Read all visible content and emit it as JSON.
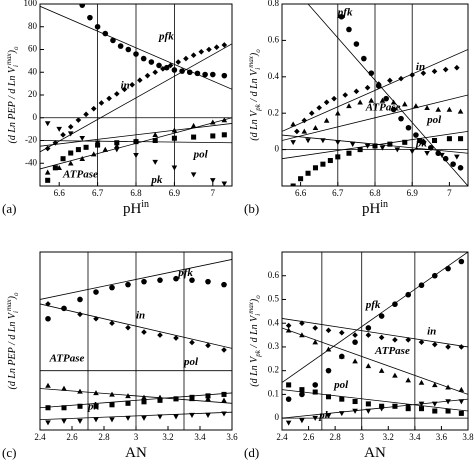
{
  "chart_data": [
    {
      "type": "scatter",
      "panel": "(a)",
      "xlabel": {
        "main": "pH",
        "sup": "in"
      },
      "ylabel": {
        "main": "(d Ln PEP / d Ln V",
        "sub": "i",
        "sup": "max",
        "end": ")",
        "end_sub": "o"
      },
      "xlim": [
        6.55,
        7.05
      ],
      "xticks": [
        6.6,
        6.7,
        6.8,
        6.9,
        7
      ],
      "ylim": [
        -60,
        100
      ],
      "yticks": [
        -40,
        -20,
        0,
        20,
        40,
        60,
        80,
        100
      ],
      "vlines": [
        6.7,
        6.8,
        6.9
      ],
      "hlines": [
        0
      ],
      "series": [
        {
          "name": "pfk",
          "marker": "circle",
          "x": [
            6.66,
            6.68,
            6.7,
            6.72,
            6.74,
            6.76,
            6.78,
            6.8,
            6.82,
            6.84,
            6.86,
            6.88,
            6.9,
            6.92,
            6.94,
            6.96,
            6.98,
            7.0,
            7.03
          ],
          "values": [
            99,
            88,
            80,
            74,
            68,
            63,
            60,
            56,
            52,
            49,
            46,
            44,
            42,
            41,
            40,
            39,
            38,
            38,
            37
          ]
        },
        {
          "name": "in",
          "marker": "diamond",
          "x": [
            6.57,
            6.59,
            6.61,
            6.63,
            6.65,
            6.67,
            6.69,
            6.71,
            6.73,
            6.75,
            6.77,
            6.79,
            6.81,
            6.83,
            6.85,
            6.87,
            6.89,
            6.91,
            6.93,
            6.95,
            6.97,
            6.99,
            7.01,
            7.03
          ],
          "values": [
            -27,
            -22,
            -15,
            -8,
            -2,
            3,
            8,
            13,
            17,
            21,
            25,
            29,
            33,
            37,
            40,
            43,
            46,
            49,
            52,
            55,
            58,
            60,
            62,
            64
          ]
        },
        {
          "name": "pol",
          "marker": "square",
          "x": [
            6.57,
            6.59,
            6.61,
            6.63,
            6.65,
            6.67,
            6.7,
            6.75,
            6.8,
            6.85,
            6.9,
            6.95,
            7.0,
            7.03
          ],
          "values": [
            -55,
            -44,
            -36,
            -31,
            -28,
            -26,
            -24,
            -22,
            -21,
            -20,
            -18,
            -17,
            -16,
            -15
          ]
        },
        {
          "name": "ATPase",
          "marker": "triangle-up",
          "x": [
            6.57,
            6.6,
            6.63,
            6.66,
            6.69,
            6.72,
            6.75,
            6.8,
            6.85,
            6.9,
            6.95,
            7.0,
            7.03
          ],
          "values": [
            -48,
            -44,
            -40,
            -36,
            -32,
            -28,
            -25,
            -20,
            -15,
            -11,
            -7,
            -4,
            -2
          ]
        },
        {
          "name": "pk",
          "marker": "triangle-down",
          "x": [
            6.57,
            6.6,
            6.63,
            6.66,
            6.7,
            6.75,
            6.8,
            6.85,
            6.9,
            6.95,
            7.0,
            7.03
          ],
          "values": [
            -5,
            -10,
            -14,
            -18,
            -22,
            -28,
            -33,
            -39,
            -44,
            -50,
            -55,
            -58
          ]
        }
      ],
      "fits": [
        {
          "x": [
            6.55,
            7.05
          ],
          "y": [
            98,
            25
          ]
        },
        {
          "x": [
            6.55,
            7.05
          ],
          "y": [
            -30,
            65
          ]
        },
        {
          "x": [
            6.55,
            7.05
          ],
          "y": [
            -25,
            -5
          ]
        },
        {
          "x": [
            6.55,
            7.05
          ],
          "y": [
            -20,
            -22
          ]
        },
        {
          "x": [
            6.55,
            7.05
          ],
          "y": [
            -45,
            0
          ]
        }
      ]
    },
    {
      "type": "scatter",
      "panel": "(b)",
      "xlabel": {
        "main": "pH",
        "sup": "in"
      },
      "ylabel": {
        "main": "(d Ln V",
        "sub": "pk",
        "sup": "",
        "end": " / d Ln V",
        "end_sub": "i",
        "sup2": "max",
        "end2": ")",
        "end_sub2": "o"
      },
      "xlim": [
        6.55,
        7.05
      ],
      "xticks": [
        6.6,
        6.7,
        6.8,
        6.9,
        7
      ],
      "ylim": [
        -0.2,
        0.8
      ],
      "yticks": [
        0,
        0.2,
        0.4,
        0.6,
        0.8
      ],
      "vlines": [
        6.7,
        6.8,
        6.9
      ],
      "hlines": [
        0
      ],
      "series": [
        {
          "name": "pfk",
          "marker": "circle",
          "x": [
            6.71,
            6.73,
            6.75,
            6.77,
            6.79,
            6.81,
            6.83,
            6.85,
            6.87,
            6.89,
            6.91,
            6.93,
            6.95,
            6.97,
            6.99,
            7.01,
            7.03
          ],
          "values": [
            0.73,
            0.66,
            0.58,
            0.5,
            0.42,
            0.35,
            0.28,
            0.22,
            0.17,
            0.12,
            0.08,
            0.04,
            0.01,
            -0.02,
            -0.05,
            -0.08,
            -0.1
          ]
        },
        {
          "name": "in",
          "marker": "diamond",
          "x": [
            6.59,
            6.61,
            6.63,
            6.65,
            6.67,
            6.69,
            6.72,
            6.75,
            6.78,
            6.81,
            6.84,
            6.87,
            6.9,
            6.93,
            6.96,
            6.99,
            7.02
          ],
          "values": [
            0.1,
            0.16,
            0.2,
            0.23,
            0.26,
            0.28,
            0.3,
            0.32,
            0.34,
            0.36,
            0.38,
            0.39,
            0.41,
            0.42,
            0.43,
            0.44,
            0.45
          ]
        },
        {
          "name": "ATPase",
          "marker": "triangle-up",
          "x": [
            6.58,
            6.61,
            6.64,
            6.67,
            6.7,
            6.73,
            6.76,
            6.79,
            6.82,
            6.85,
            6.88,
            6.91,
            6.94,
            6.97,
            7.0,
            7.03
          ],
          "values": [
            0.14,
            0.1,
            0.12,
            0.16,
            0.2,
            0.24,
            0.26,
            0.27,
            0.27,
            0.26,
            0.25,
            0.24,
            0.23,
            0.22,
            0.22,
            0.21
          ]
        },
        {
          "name": "pol",
          "marker": "square",
          "x": [
            6.58,
            6.6,
            6.62,
            6.64,
            6.66,
            6.68,
            6.7,
            6.73,
            6.76,
            6.8,
            6.84,
            6.88,
            6.92,
            6.96,
            7.0,
            7.03
          ],
          "values": [
            -0.2,
            -0.16,
            -0.13,
            -0.1,
            -0.08,
            -0.06,
            -0.04,
            -0.02,
            0,
            0.02,
            0.03,
            0.04,
            0.05,
            0.05,
            0.06,
            0.06
          ]
        },
        {
          "name": "pk",
          "marker": "triangle-down",
          "x": [
            6.58,
            6.62,
            6.66,
            6.7,
            6.74,
            6.78,
            6.82,
            6.86,
            6.9,
            6.94,
            6.98,
            7.02
          ],
          "values": [
            0.04,
            0.05,
            0.05,
            0.04,
            0.03,
            0.02,
            0.01,
            0,
            -0.01,
            -0.02,
            -0.03,
            -0.04
          ]
        }
      ],
      "fits": [
        {
          "x": [
            6.62,
            7.05
          ],
          "y": [
            0.8,
            -0.2
          ]
        },
        {
          "x": [
            6.55,
            7.05
          ],
          "y": [
            0.1,
            0.55
          ]
        },
        {
          "x": [
            6.55,
            7.05
          ],
          "y": [
            0.05,
            0.3
          ]
        },
        {
          "x": [
            6.55,
            7.05
          ],
          "y": [
            -0.05,
            0.1
          ]
        },
        {
          "x": [
            6.55,
            7.05
          ],
          "y": [
            0.08,
            -0.02
          ]
        }
      ]
    },
    {
      "type": "scatter",
      "panel": "(c)",
      "xlabel": {
        "main": "AN"
      },
      "ylabel": {
        "main": "(d Ln PEP / d Ln V",
        "sub": "i",
        "sup": "max",
        "end": ")",
        "end_sub": "o"
      },
      "xlim": [
        2.4,
        3.6
      ],
      "xticks": [
        2.4,
        2.6,
        2.8,
        3,
        3.2,
        3.4,
        3.6
      ],
      "ylim": [
        -40,
        80
      ],
      "vlines": [
        2.7,
        3.0,
        3.3
      ],
      "hlines": [
        0
      ],
      "series": [
        {
          "name": "pfk",
          "marker": "circle",
          "x": [
            2.45,
            2.55,
            2.65,
            2.75,
            2.85,
            2.95,
            3.05,
            3.15,
            3.25,
            3.35,
            3.45,
            3.55
          ],
          "values": [
            35,
            42,
            48,
            53,
            56,
            58,
            60,
            61,
            62,
            61,
            60,
            58
          ]
        },
        {
          "name": "in",
          "marker": "diamond",
          "x": [
            2.45,
            2.55,
            2.65,
            2.75,
            2.85,
            2.95,
            3.05,
            3.15,
            3.25,
            3.35,
            3.45,
            3.55
          ],
          "values": [
            45,
            42,
            38,
            35,
            32,
            29,
            26,
            24,
            22,
            19,
            17,
            14
          ]
        },
        {
          "name": "ATPase",
          "marker": "triangle-up",
          "x": [
            2.45,
            2.55,
            2.65,
            2.75,
            2.85,
            2.95,
            3.05,
            3.15,
            3.25,
            3.35,
            3.45,
            3.55
          ],
          "values": [
            -10,
            -12,
            -14,
            -15,
            -16,
            -17,
            -18,
            -18,
            -19,
            -19,
            -19,
            -20
          ]
        },
        {
          "name": "pol",
          "marker": "square",
          "x": [
            2.45,
            2.55,
            2.65,
            2.75,
            2.85,
            2.95,
            3.05,
            3.15,
            3.25,
            3.35,
            3.45,
            3.55
          ],
          "values": [
            -25,
            -25,
            -24,
            -24,
            -23,
            -22,
            -21,
            -20,
            -19,
            -18,
            -17,
            -16
          ]
        },
        {
          "name": "pk",
          "marker": "triangle-down",
          "x": [
            2.45,
            2.55,
            2.65,
            2.75,
            2.85,
            2.95,
            3.05,
            3.15,
            3.25,
            3.35,
            3.45,
            3.55
          ],
          "values": [
            -35,
            -34,
            -34,
            -33,
            -33,
            -32,
            -32,
            -31,
            -31,
            -30,
            -30,
            -29
          ]
        }
      ],
      "fits": [
        {
          "x": [
            2.4,
            3.6
          ],
          "y": [
            48,
            75
          ]
        },
        {
          "x": [
            2.4,
            3.6
          ],
          "y": [
            45,
            15
          ]
        },
        {
          "x": [
            2.4,
            3.6
          ],
          "y": [
            -12,
            -22
          ]
        },
        {
          "x": [
            2.4,
            3.6
          ],
          "y": [
            -25,
            -15
          ]
        },
        {
          "x": [
            2.4,
            3.6
          ],
          "y": [
            -33,
            -28
          ]
        }
      ]
    },
    {
      "type": "scatter",
      "panel": "(d)",
      "xlabel": {
        "main": "AN"
      },
      "ylabel": {
        "main": "(d Ln V",
        "sub": "pk",
        "sup": "",
        "end": " / d Ln V",
        "end_sub": "i",
        "sup2": "max",
        "end2": ")",
        "end_sub2": "o"
      },
      "xlim": [
        2.4,
        3.8
      ],
      "xticks": [
        2.4,
        2.6,
        2.8,
        3,
        3.2,
        3.4,
        3.6,
        3.8
      ],
      "ylim": [
        -0.05,
        0.7
      ],
      "yticks": [
        0,
        0.1,
        0.2,
        0.3,
        0.4,
        0.5,
        0.6
      ],
      "vlines": [
        2.7,
        3.0,
        3.4
      ],
      "hlines": [
        0
      ],
      "series": [
        {
          "name": "pfk",
          "marker": "circle",
          "x": [
            2.45,
            2.55,
            2.65,
            2.75,
            2.85,
            2.95,
            3.05,
            3.15,
            3.25,
            3.35,
            3.45,
            3.55,
            3.65,
            3.75
          ],
          "values": [
            0.08,
            0.1,
            0.14,
            0.2,
            0.26,
            0.32,
            0.38,
            0.43,
            0.48,
            0.52,
            0.56,
            0.6,
            0.63,
            0.66
          ]
        },
        {
          "name": "in",
          "marker": "diamond",
          "x": [
            2.45,
            2.55,
            2.65,
            2.75,
            2.85,
            2.95,
            3.05,
            3.15,
            3.25,
            3.35,
            3.45,
            3.55,
            3.65,
            3.75
          ],
          "values": [
            0.39,
            0.4,
            0.38,
            0.37,
            0.36,
            0.35,
            0.35,
            0.34,
            0.33,
            0.33,
            0.32,
            0.31,
            0.3,
            0.3
          ]
        },
        {
          "name": "ATPase",
          "marker": "triangle-up",
          "x": [
            2.45,
            2.55,
            2.65,
            2.75,
            2.85,
            2.95,
            3.05,
            3.15,
            3.25,
            3.35,
            3.45,
            3.55,
            3.65,
            3.75
          ],
          "values": [
            0.37,
            0.35,
            0.32,
            0.29,
            0.26,
            0.24,
            0.22,
            0.2,
            0.18,
            0.16,
            0.15,
            0.14,
            0.13,
            0.12
          ]
        },
        {
          "name": "pol",
          "marker": "square",
          "x": [
            2.45,
            2.55,
            2.65,
            2.75,
            2.85,
            2.95,
            3.05,
            3.15,
            3.25,
            3.35,
            3.45,
            3.55,
            3.65,
            3.75
          ],
          "values": [
            0.14,
            0.12,
            0.11,
            0.09,
            0.08,
            0.07,
            0.06,
            0.05,
            0.05,
            0.04,
            0.04,
            0.03,
            0.03,
            0.02
          ]
        },
        {
          "name": "pk",
          "marker": "triangle-down",
          "x": [
            2.45,
            2.55,
            2.65,
            2.75,
            2.85,
            2.95,
            3.05,
            3.15,
            3.25,
            3.35,
            3.45,
            3.55,
            3.65,
            3.75
          ],
          "values": [
            -0.02,
            -0.01,
            0,
            0.01,
            0.02,
            0.03,
            0.03,
            0.04,
            0.05,
            0.05,
            0.06,
            0.06,
            0.07,
            0.07
          ]
        }
      ],
      "fits": [
        {
          "x": [
            2.4,
            3.8
          ],
          "y": [
            0.42,
            0.3
          ]
        },
        {
          "x": [
            2.4,
            3.8
          ],
          "y": [
            0.15,
            0.7
          ]
        },
        {
          "x": [
            2.4,
            3.8
          ],
          "y": [
            0.38,
            0.1
          ]
        },
        {
          "x": [
            2.4,
            3.8
          ],
          "y": [
            0.12,
            0.03
          ]
        },
        {
          "x": [
            2.4,
            3.8
          ],
          "y": [
            0,
            0.08
          ]
        }
      ]
    }
  ]
}
